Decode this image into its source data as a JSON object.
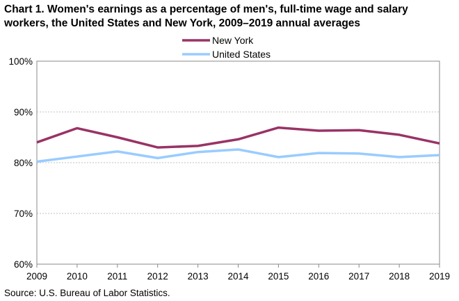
{
  "chart_data": {
    "type": "line",
    "title": "Chart 1. Women's earnings as a percentage of men's, full-time wage and salary workers, the United States and New York, 2009–2019 annual averages",
    "x": [
      "2009",
      "2010",
      "2011",
      "2012",
      "2013",
      "2014",
      "2015",
      "2016",
      "2017",
      "2018",
      "2019"
    ],
    "y_ticks": [
      60,
      70,
      80,
      90,
      100
    ],
    "y_tick_labels": [
      "60%",
      "70%",
      "80%",
      "90%",
      "100%"
    ],
    "ylim": [
      60,
      100
    ],
    "grid": "horizontal",
    "legend_position": "top-center",
    "series": [
      {
        "name": "New York",
        "color": "#993366",
        "values": [
          84.0,
          86.8,
          85.0,
          83.0,
          83.3,
          84.6,
          86.9,
          86.3,
          86.4,
          85.5,
          83.8
        ]
      },
      {
        "name": "United States",
        "color": "#99ccff",
        "values": [
          80.2,
          81.2,
          82.2,
          80.9,
          82.1,
          82.6,
          81.1,
          81.9,
          81.8,
          81.1,
          81.5
        ]
      }
    ]
  },
  "source": "Source:  U.S. Bureau of Labor Statistics."
}
